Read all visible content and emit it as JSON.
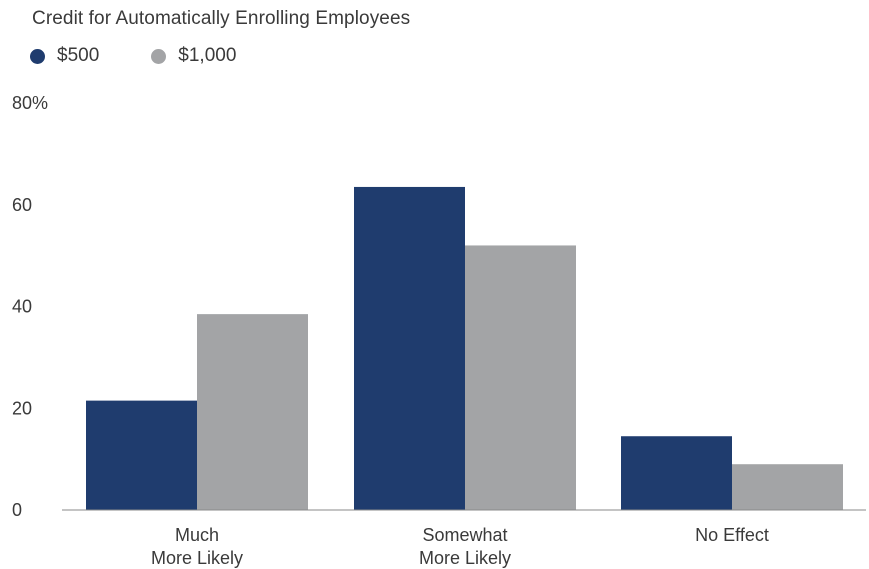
{
  "chart_data": {
    "type": "bar",
    "title": "Credit for Automatically Enrolling Employees",
    "categories": [
      [
        "Much",
        "More Likely"
      ],
      [
        "Somewhat",
        "More Likely"
      ],
      [
        "No Effect"
      ]
    ],
    "series": [
      {
        "name": "$500",
        "color": "#1f3c6e",
        "values": [
          21.5,
          63.5,
          14.5
        ]
      },
      {
        "name": "$1,000",
        "color": "#a3a4a6",
        "values": [
          38.5,
          52.0,
          9.0
        ]
      }
    ],
    "ylim": [
      0,
      80
    ],
    "yticks": [
      {
        "value": 0,
        "label": "0"
      },
      {
        "value": 20,
        "label": "20"
      },
      {
        "value": 40,
        "label": "40"
      },
      {
        "value": 60,
        "label": "60"
      },
      {
        "value": 80,
        "label": "80%"
      }
    ],
    "xlabel": "",
    "ylabel": "",
    "grid": false,
    "legend": "top-left"
  }
}
